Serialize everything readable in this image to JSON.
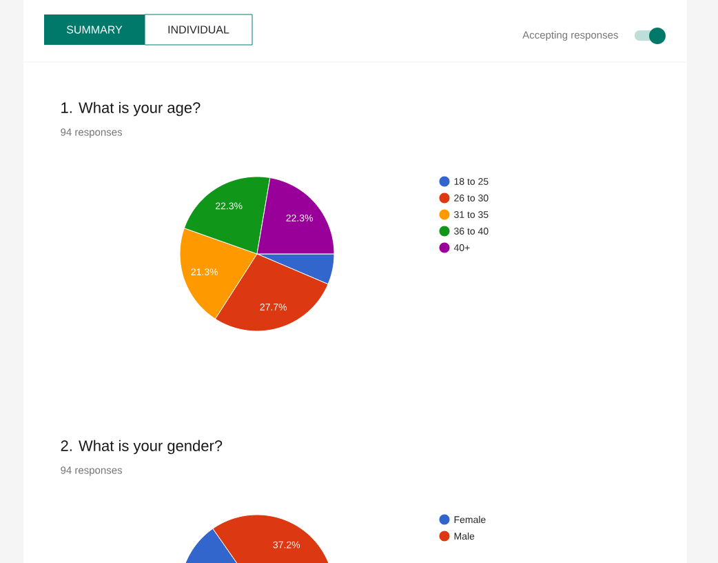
{
  "chart_data": [
    {
      "type": "pie",
      "title": "1. What is your age?",
      "subtitle": "94 responses",
      "categories": [
        "18 to 25",
        "26 to 30",
        "31 to 35",
        "36 to 40",
        "40+"
      ],
      "values": [
        6.4,
        27.7,
        21.3,
        22.3,
        22.3
      ],
      "colors": [
        "#3366cc",
        "#dc3912",
        "#ff9900",
        "#109618",
        "#990099"
      ],
      "value_labels": [
        null,
        "27.7%",
        "21.3%",
        "22.3%",
        "22.3%"
      ],
      "legend": "right",
      "annotations": [
        "SUMMARY",
        "INDIVIDUAL",
        "Accepting responses"
      ]
    },
    {
      "type": "pie",
      "title": "2. What is your gender?",
      "subtitle": "94 responses",
      "categories": [
        "Female",
        "Male"
      ],
      "values": [
        62.8,
        37.2
      ],
      "colors": [
        "#3366cc",
        "#dc3912"
      ],
      "value_labels": [
        null,
        "37.2%"
      ],
      "legend": "right"
    }
  ]
}
